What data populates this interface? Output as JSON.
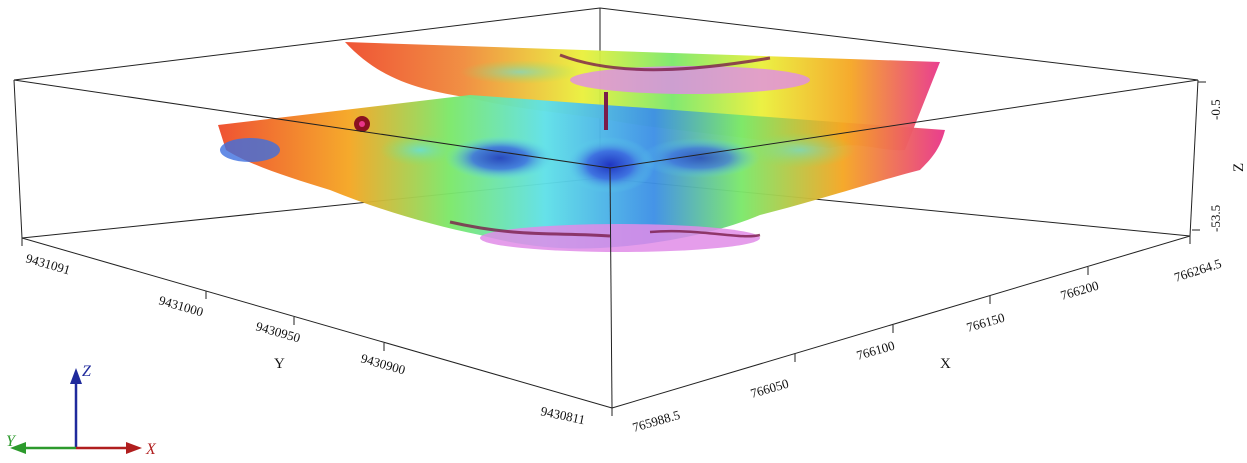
{
  "chart_data": {
    "type": "3d-surface",
    "colormap": [
      "#1d2fbf",
      "#3d8fe6",
      "#5fe0e8",
      "#7be86a",
      "#eaf03a",
      "#f5a623",
      "#ee4b2b",
      "#e8358a",
      "#e08ce8"
    ],
    "axes": {
      "x": {
        "label": "X",
        "range": [
          765988.5,
          766264.5
        ],
        "ticks": [
          "765988.5",
          "766050",
          "766100",
          "766150",
          "766200",
          "766264.5"
        ]
      },
      "y": {
        "label": "Y",
        "range": [
          9430811,
          9431091
        ],
        "ticks": [
          "9430811",
          "9430900",
          "9430950",
          "9431000",
          "9431091"
        ]
      },
      "z": {
        "label": "Z",
        "range": [
          -53.5,
          -0.5
        ],
        "ticks": [
          "-0.5",
          "-53.5"
        ]
      }
    },
    "triad": {
      "x": "X",
      "y": "Y",
      "z": "Z",
      "x_color": "#b01e1e",
      "y_color": "#2c9a2c",
      "z_color": "#1f2a9c"
    }
  }
}
